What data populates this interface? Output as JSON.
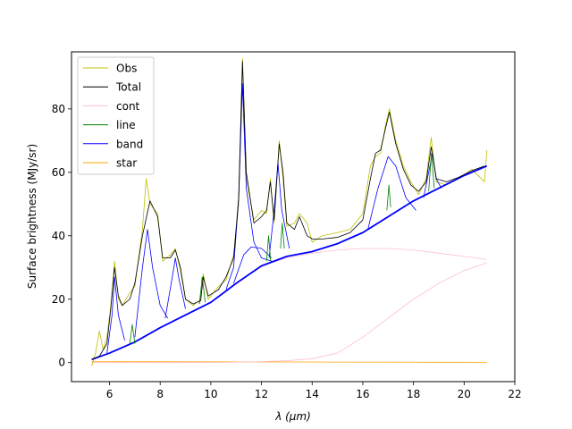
{
  "chart_data": {
    "type": "line",
    "title": "",
    "xlabel": "λ (μm)",
    "ylabel": "Surface brightness (MJy/sr)",
    "xlim": [
      4.5,
      22
    ],
    "ylim": [
      -6,
      98
    ],
    "xticks": [
      6,
      8,
      10,
      12,
      14,
      16,
      18,
      20,
      22
    ],
    "yticks": [
      0,
      20,
      40,
      60,
      80
    ],
    "grid": false,
    "legend_position": "top-left",
    "legend": [
      {
        "name": "Obs",
        "color": "#bfbf00"
      },
      {
        "name": "Total",
        "color": "#000000"
      },
      {
        "name": "cont",
        "color": "#ffc0cb"
      },
      {
        "name": "line",
        "color": "#008000"
      },
      {
        "name": "band",
        "color": "#0000ff"
      },
      {
        "name": "star",
        "color": "#ffa500"
      }
    ],
    "series": [
      {
        "name": "Total",
        "color": "#000000",
        "points": [
          [
            5.3,
            1
          ],
          [
            5.6,
            2
          ],
          [
            5.9,
            6
          ],
          [
            6.05,
            17
          ],
          [
            6.2,
            30
          ],
          [
            6.35,
            21
          ],
          [
            6.5,
            18
          ],
          [
            6.8,
            20
          ],
          [
            7.0,
            25
          ],
          [
            7.3,
            40
          ],
          [
            7.6,
            51
          ],
          [
            7.9,
            46
          ],
          [
            8.1,
            33
          ],
          [
            8.4,
            33
          ],
          [
            8.6,
            35.5
          ],
          [
            8.8,
            30
          ],
          [
            9.0,
            20
          ],
          [
            9.3,
            18.5
          ],
          [
            9.6,
            19.5
          ],
          [
            9.7,
            27
          ],
          [
            9.9,
            21
          ],
          [
            10.3,
            23
          ],
          [
            10.6,
            27
          ],
          [
            10.9,
            33
          ],
          [
            11.1,
            52
          ],
          [
            11.25,
            95
          ],
          [
            11.4,
            60
          ],
          [
            11.7,
            44
          ],
          [
            12.0,
            46
          ],
          [
            12.2,
            48
          ],
          [
            12.35,
            57
          ],
          [
            12.5,
            45
          ],
          [
            12.7,
            69
          ],
          [
            12.85,
            60
          ],
          [
            13.0,
            44
          ],
          [
            13.3,
            42
          ],
          [
            13.5,
            46
          ],
          [
            13.8,
            40
          ],
          [
            14.0,
            39
          ],
          [
            14.4,
            39
          ],
          [
            15.0,
            39.5
          ],
          [
            15.5,
            41
          ],
          [
            16.0,
            45
          ],
          [
            16.3,
            58
          ],
          [
            16.5,
            66
          ],
          [
            16.7,
            67
          ],
          [
            16.9,
            74
          ],
          [
            17.05,
            79
          ],
          [
            17.3,
            69
          ],
          [
            17.6,
            61
          ],
          [
            17.9,
            56
          ],
          [
            18.2,
            54
          ],
          [
            18.5,
            57
          ],
          [
            18.7,
            68
          ],
          [
            18.9,
            58
          ],
          [
            19.3,
            57
          ],
          [
            19.8,
            58.5
          ],
          [
            20.3,
            60.5
          ],
          [
            20.8,
            62
          ]
        ]
      },
      {
        "name": "Obs",
        "color": "#bfbf00",
        "points": [
          [
            5.3,
            -1
          ],
          [
            5.45,
            3
          ],
          [
            5.6,
            10
          ],
          [
            5.75,
            4
          ],
          [
            5.9,
            8
          ],
          [
            6.05,
            18
          ],
          [
            6.2,
            32
          ],
          [
            6.35,
            20
          ],
          [
            6.5,
            18
          ],
          [
            6.8,
            22
          ],
          [
            7.0,
            24
          ],
          [
            7.3,
            42
          ],
          [
            7.45,
            58
          ],
          [
            7.6,
            50
          ],
          [
            7.9,
            47
          ],
          [
            8.1,
            32
          ],
          [
            8.4,
            34
          ],
          [
            8.6,
            36
          ],
          [
            8.8,
            29
          ],
          [
            9.0,
            20
          ],
          [
            9.3,
            18
          ],
          [
            9.6,
            20
          ],
          [
            9.7,
            28
          ],
          [
            9.9,
            20
          ],
          [
            10.3,
            24
          ],
          [
            10.6,
            26
          ],
          [
            10.9,
            34
          ],
          [
            11.1,
            50
          ],
          [
            11.25,
            96
          ],
          [
            11.4,
            58
          ],
          [
            11.7,
            45
          ],
          [
            12.0,
            48
          ],
          [
            12.2,
            47
          ],
          [
            12.35,
            58
          ],
          [
            12.5,
            44
          ],
          [
            12.7,
            70
          ],
          [
            12.85,
            58
          ],
          [
            13.0,
            43
          ],
          [
            13.3,
            44
          ],
          [
            13.5,
            47
          ],
          [
            13.8,
            44
          ],
          [
            14.0,
            38
          ],
          [
            14.4,
            40
          ],
          [
            15.0,
            41
          ],
          [
            15.5,
            42
          ],
          [
            16.0,
            47
          ],
          [
            16.3,
            62
          ],
          [
            16.5,
            65
          ],
          [
            16.7,
            66
          ],
          [
            16.9,
            75
          ],
          [
            17.05,
            80
          ],
          [
            17.3,
            70
          ],
          [
            17.6,
            62
          ],
          [
            17.9,
            57
          ],
          [
            18.2,
            53
          ],
          [
            18.5,
            58
          ],
          [
            18.7,
            71
          ],
          [
            18.9,
            57
          ],
          [
            19.3,
            56
          ],
          [
            19.8,
            58
          ],
          [
            20.3,
            61
          ],
          [
            20.8,
            57
          ],
          [
            20.9,
            67
          ]
        ]
      },
      {
        "name": "cont",
        "color": "#ffc0cb",
        "points": [
          [
            5.3,
            1
          ],
          [
            6,
            3
          ],
          [
            7,
            6.5
          ],
          [
            8,
            11
          ],
          [
            9,
            15
          ],
          [
            10,
            19
          ],
          [
            11,
            25
          ],
          [
            12,
            30.5
          ],
          [
            13,
            33
          ],
          [
            14,
            34.5
          ],
          [
            15,
            35.5
          ],
          [
            16,
            36
          ],
          [
            17,
            36
          ],
          [
            18,
            35.5
          ],
          [
            19,
            34.5
          ],
          [
            20,
            33.5
          ],
          [
            20.9,
            32.5
          ]
        ]
      },
      {
        "name": "cont",
        "color": "#ffc0cb",
        "points": [
          [
            5.3,
            0
          ],
          [
            10,
            0
          ],
          [
            12,
            0.3
          ],
          [
            13,
            0.6
          ],
          [
            14,
            1.2
          ],
          [
            15,
            3
          ],
          [
            16,
            8
          ],
          [
            17,
            14
          ],
          [
            18,
            20
          ],
          [
            19,
            25
          ],
          [
            20,
            29
          ],
          [
            20.9,
            31.5
          ]
        ]
      },
      {
        "name": "band",
        "color": "#0000ff",
        "points": [
          [
            5.3,
            1
          ],
          [
            6,
            3
          ],
          [
            7,
            6.5
          ],
          [
            8,
            11
          ],
          [
            9,
            15
          ],
          [
            10,
            19
          ],
          [
            11,
            25
          ],
          [
            12,
            30.5
          ],
          [
            13,
            33.5
          ],
          [
            14,
            35
          ],
          [
            15,
            37.5
          ],
          [
            16,
            41
          ],
          [
            17,
            46
          ],
          [
            18,
            51
          ],
          [
            19,
            55
          ],
          [
            20,
            59
          ],
          [
            20.9,
            62
          ]
        ]
      },
      {
        "name": "band",
        "color": "#0000ff",
        "points": [
          [
            10.6,
            23
          ],
          [
            10.9,
            30
          ],
          [
            11.1,
            52
          ],
          [
            11.25,
            88
          ],
          [
            11.4,
            55
          ],
          [
            11.7,
            38
          ],
          [
            12.0,
            33
          ],
          [
            12.4,
            32
          ]
        ]
      },
      {
        "name": "band",
        "color": "#0000ff",
        "points": [
          [
            7.0,
            8
          ],
          [
            7.3,
            30
          ],
          [
            7.5,
            42
          ],
          [
            7.7,
            30
          ],
          [
            8.0,
            18
          ],
          [
            8.3,
            14
          ]
        ]
      },
      {
        "name": "band",
        "color": "#0000ff",
        "points": [
          [
            5.9,
            3
          ],
          [
            6.1,
            15
          ],
          [
            6.2,
            27
          ],
          [
            6.35,
            15
          ],
          [
            6.6,
            7
          ]
        ]
      },
      {
        "name": "band",
        "color": "#0000ff",
        "points": [
          [
            8.2,
            14
          ],
          [
            8.5,
            28
          ],
          [
            8.6,
            33
          ],
          [
            8.75,
            26
          ],
          [
            9.0,
            17
          ]
        ]
      },
      {
        "name": "band",
        "color": "#0000ff",
        "points": [
          [
            12.3,
            33
          ],
          [
            12.5,
            48
          ],
          [
            12.65,
            63
          ],
          [
            12.8,
            48
          ],
          [
            13.1,
            36
          ]
        ]
      },
      {
        "name": "band",
        "color": "#0000ff",
        "points": [
          [
            16.2,
            42
          ],
          [
            16.6,
            55
          ],
          [
            17.0,
            65
          ],
          [
            17.3,
            62
          ],
          [
            17.7,
            52
          ],
          [
            18.1,
            48
          ]
        ]
      },
      {
        "name": "band",
        "color": "#0000ff",
        "points": [
          [
            18.4,
            52
          ],
          [
            18.6,
            60
          ],
          [
            18.75,
            66
          ],
          [
            18.9,
            58
          ],
          [
            19.1,
            55
          ]
        ]
      },
      {
        "name": "band",
        "color": "#0000ff",
        "points": [
          [
            10.9,
            25
          ],
          [
            11.3,
            34
          ],
          [
            11.6,
            36.5
          ],
          [
            12.0,
            36
          ],
          [
            12.4,
            33
          ]
        ]
      },
      {
        "name": "line",
        "color": "#008000",
        "points": [
          [
            6.8,
            6
          ],
          [
            6.9,
            12
          ],
          [
            7.0,
            6
          ]
        ]
      },
      {
        "name": "line",
        "color": "#008000",
        "points": [
          [
            9.55,
            18.5
          ],
          [
            9.66,
            27
          ],
          [
            9.78,
            19
          ]
        ]
      },
      {
        "name": "line",
        "color": "#008000",
        "points": [
          [
            12.2,
            32
          ],
          [
            12.28,
            40
          ],
          [
            12.36,
            32
          ]
        ]
      },
      {
        "name": "line",
        "color": "#008000",
        "points": [
          [
            12.75,
            36
          ],
          [
            12.82,
            44
          ],
          [
            12.9,
            36
          ]
        ]
      },
      {
        "name": "line",
        "color": "#008000",
        "points": [
          [
            16.95,
            48
          ],
          [
            17.03,
            56
          ],
          [
            17.1,
            49
          ]
        ]
      },
      {
        "name": "line",
        "color": "#008000",
        "points": [
          [
            18.6,
            54
          ],
          [
            18.71,
            66
          ],
          [
            18.82,
            55
          ]
        ]
      },
      {
        "name": "star",
        "color": "#ffa500",
        "points": [
          [
            5.3,
            0.3
          ],
          [
            20.9,
            0.1
          ]
        ]
      }
    ]
  }
}
